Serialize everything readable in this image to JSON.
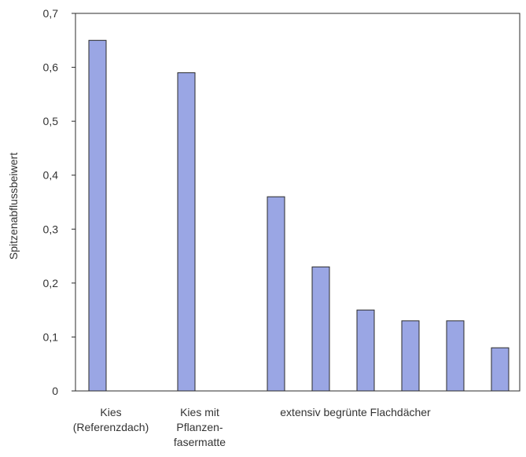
{
  "chart_data": {
    "type": "bar",
    "title": "",
    "xlabel": "",
    "ylabel": "Spitzenabflussbeiwert",
    "ylim": [
      0,
      0.7
    ],
    "yticks": [
      "0",
      "0,1",
      "0,2",
      "0,3",
      "0,4",
      "0,5",
      "0,6",
      "0,7"
    ],
    "grid": false,
    "bar_color": "#9aa6e4",
    "bar_edge_color": "#2b2b2b",
    "values": [
      0.65,
      0.59,
      0.36,
      0.23,
      0.15,
      0.13,
      0.13,
      0.08
    ],
    "category_labels": [
      {
        "lines": [
          "Kies",
          "(Referenzdach)"
        ]
      },
      {
        "lines": [
          "Kies mit",
          "Pflanzen-",
          "fasermatte"
        ]
      },
      {
        "lines": [
          "extensiv begrünte Flachdächer"
        ]
      }
    ]
  }
}
